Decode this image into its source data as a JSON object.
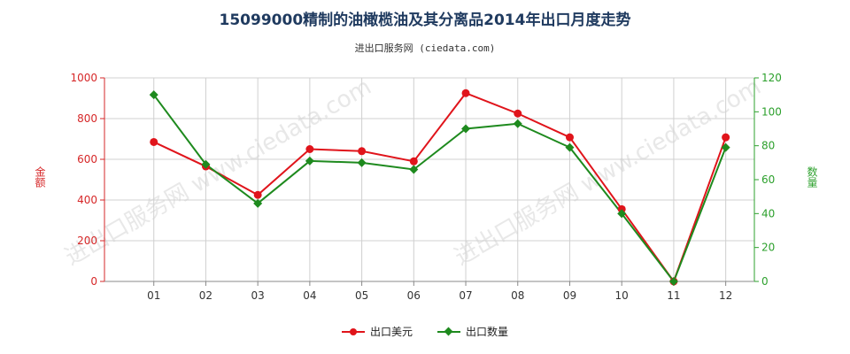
{
  "title": "15099000精制的油橄榄油及其分离品2014年出口月度走势",
  "subtitle": "进出口服务网 (ciedata.com)",
  "watermark": "进出口服务网 www.ciedata.com",
  "colors": {
    "usd": "#e0141b",
    "qty": "#1e8a1e",
    "left_axis": "#d62728",
    "right_axis": "#2ca02c",
    "grid": "#d0d0d0"
  },
  "chart_data": {
    "type": "line",
    "categories": [
      "01",
      "02",
      "03",
      "04",
      "05",
      "06",
      "07",
      "08",
      "09",
      "10",
      "11",
      "12"
    ],
    "series": [
      {
        "name": "出口美元",
        "axis": "left",
        "values": [
          685,
          565,
          425,
          650,
          640,
          590,
          925,
          825,
          708,
          355,
          0,
          708
        ]
      },
      {
        "name": "出口数量",
        "axis": "right",
        "values": [
          110,
          69,
          46,
          71,
          70,
          66,
          90,
          93,
          79,
          40,
          0,
          79
        ]
      }
    ],
    "ylabel_left": "金额",
    "ylabel_right": "数量",
    "ylim_left": [
      0,
      1000
    ],
    "ylim_right": [
      0,
      120
    ],
    "yticks_left": [
      0,
      200,
      400,
      600,
      800,
      1000
    ],
    "yticks_right": [
      0,
      20,
      40,
      60,
      80,
      100,
      120
    ],
    "grid": true,
    "legend_position": "bottom"
  }
}
